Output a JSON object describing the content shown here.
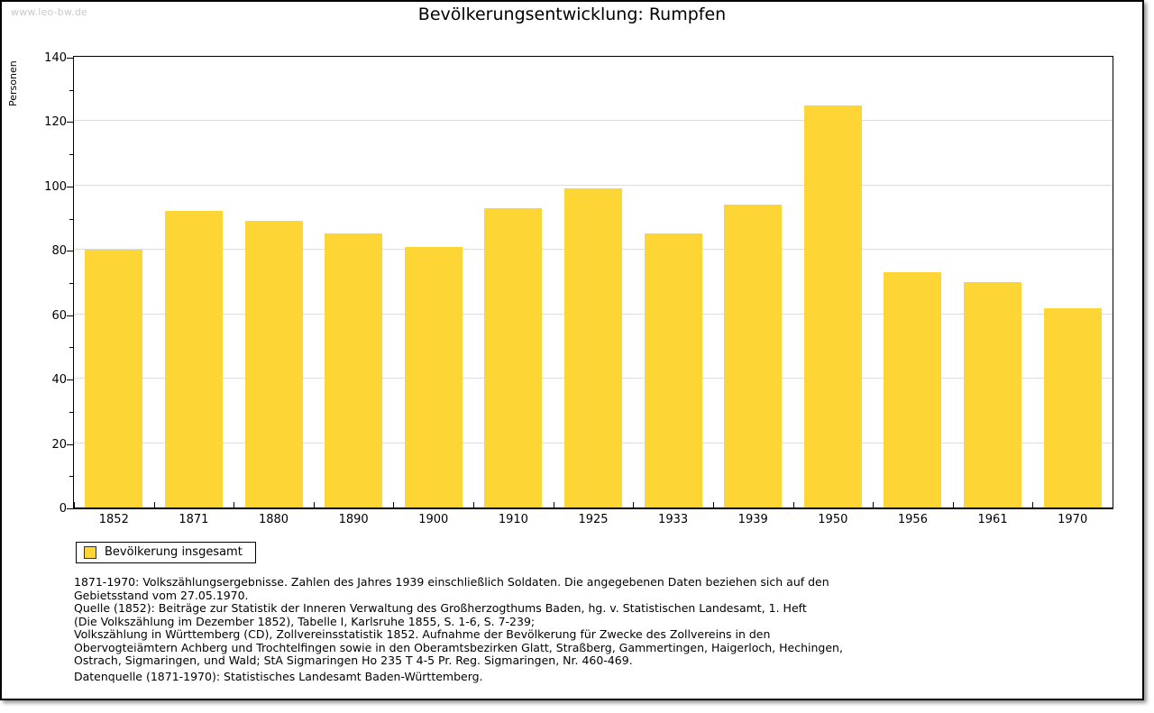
{
  "watermark": "www.leo-bw.de",
  "chart_data": {
    "type": "bar",
    "title": "Bevölkerungsentwicklung: Rumpfen",
    "ylabel": "Personen",
    "xlabel": "",
    "categories": [
      "1852",
      "1871",
      "1880",
      "1890",
      "1900",
      "1910",
      "1925",
      "1933",
      "1939",
      "1950",
      "1956",
      "1961",
      "1970"
    ],
    "values": [
      80,
      92,
      89,
      85,
      81,
      93,
      99,
      85,
      94,
      125,
      73,
      70,
      62
    ],
    "ylim": [
      0,
      140
    ],
    "ytick_step": 20,
    "ytick_minor_step": 10,
    "grid": true,
    "bar_color": "#fdd535",
    "legend_position": "bottom-left",
    "legend": [
      {
        "label": "Bevölkerung insgesamt",
        "color": "#fdd535"
      }
    ]
  },
  "footnotes": {
    "lines": [
      "1871-1970: Volkszählungsergebnisse. Zahlen des Jahres 1939 einschließlich Soldaten. Die angegebenen Daten beziehen sich auf den",
      "Gebietsstand vom 27.05.1970.",
      "Quelle (1852): Beiträge zur Statistik der Inneren Verwaltung des Großherzogthums Baden, hg. v. Statistischen Landesamt, 1. Heft",
      "(Die Volkszählung im Dezember 1852), Tabelle I, Karlsruhe 1855, S. 1-6, S. 7-239;",
      "Volkszählung in Württemberg (CD), Zollvereinsstatistik 1852. Aufnahme der Bevölkerung für Zwecke des Zollvereins in den",
      "Obervogteiämtern Achberg und Trochtelfingen sowie in den Oberamtsbezirken Glatt, Straßberg, Gammertingen, Haigerloch, Hechingen,",
      "Ostrach, Sigmaringen, und Wald; StA Sigmaringen Ho 235 T 4-5 Pr. Reg. Sigmaringen, Nr. 460-469."
    ],
    "datasource": "Datenquelle (1871-1970): Statistisches Landesamt Baden-Württemberg."
  }
}
